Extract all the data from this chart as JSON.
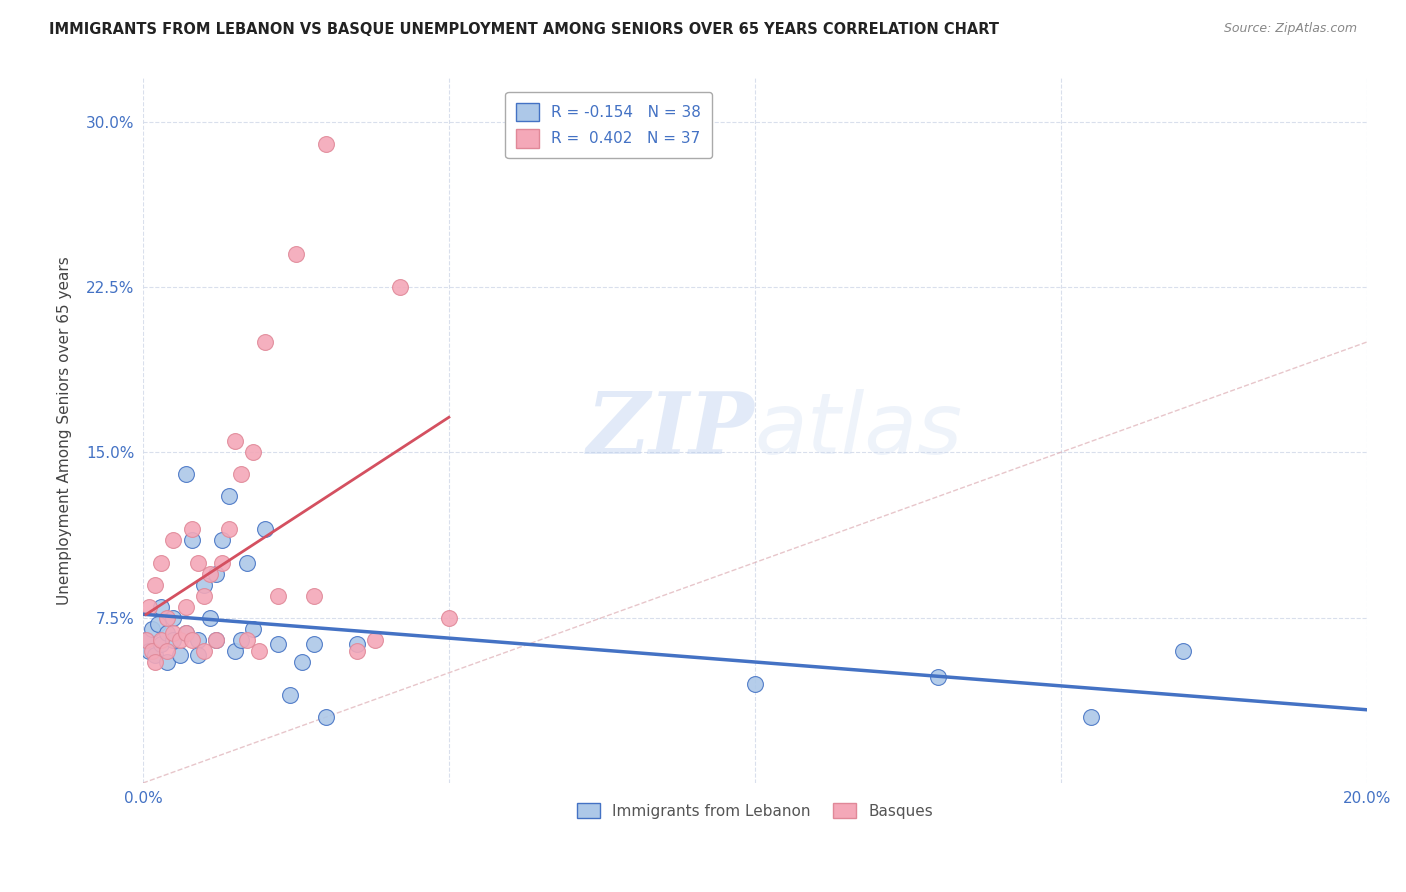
{
  "title": "IMMIGRANTS FROM LEBANON VS BASQUE UNEMPLOYMENT AMONG SENIORS OVER 65 YEARS CORRELATION CHART",
  "source": "Source: ZipAtlas.com",
  "ylabel": "Unemployment Among Seniors over 65 years",
  "legend_label_1": "Immigrants from Lebanon",
  "legend_label_2": "Basques",
  "r1": -0.154,
  "n1": 38,
  "r2": 0.402,
  "n2": 37,
  "color_blue": "#adc8e8",
  "color_pink": "#f4a8b8",
  "color_blue_line": "#4472c4",
  "color_pink_line": "#d45060",
  "color_diag": "#d8a0a8",
  "xlim": [
    0.0,
    0.2
  ],
  "ylim": [
    0.0,
    0.32
  ],
  "xticks": [
    0.0,
    0.05,
    0.1,
    0.15,
    0.2
  ],
  "yticks": [
    0.075,
    0.15,
    0.225,
    0.3
  ],
  "blue_x": [
    0.0005,
    0.001,
    0.0015,
    0.002,
    0.0025,
    0.003,
    0.003,
    0.004,
    0.004,
    0.005,
    0.005,
    0.006,
    0.007,
    0.007,
    0.008,
    0.009,
    0.009,
    0.01,
    0.011,
    0.012,
    0.012,
    0.013,
    0.014,
    0.015,
    0.016,
    0.017,
    0.018,
    0.02,
    0.022,
    0.024,
    0.026,
    0.028,
    0.03,
    0.035,
    0.1,
    0.13,
    0.155,
    0.17
  ],
  "blue_y": [
    0.065,
    0.06,
    0.07,
    0.058,
    0.072,
    0.063,
    0.08,
    0.055,
    0.068,
    0.075,
    0.065,
    0.058,
    0.14,
    0.068,
    0.11,
    0.065,
    0.058,
    0.09,
    0.075,
    0.095,
    0.065,
    0.11,
    0.13,
    0.06,
    0.065,
    0.1,
    0.07,
    0.115,
    0.063,
    0.04,
    0.055,
    0.063,
    0.03,
    0.063,
    0.045,
    0.048,
    0.03,
    0.06
  ],
  "pink_x": [
    0.0005,
    0.001,
    0.0015,
    0.002,
    0.002,
    0.003,
    0.003,
    0.004,
    0.004,
    0.005,
    0.005,
    0.006,
    0.007,
    0.007,
    0.008,
    0.008,
    0.009,
    0.01,
    0.01,
    0.011,
    0.012,
    0.013,
    0.014,
    0.015,
    0.016,
    0.017,
    0.018,
    0.019,
    0.02,
    0.022,
    0.025,
    0.028,
    0.03,
    0.035,
    0.038,
    0.042,
    0.05
  ],
  "pink_y": [
    0.065,
    0.08,
    0.06,
    0.055,
    0.09,
    0.065,
    0.1,
    0.075,
    0.06,
    0.068,
    0.11,
    0.065,
    0.068,
    0.08,
    0.065,
    0.115,
    0.1,
    0.06,
    0.085,
    0.095,
    0.065,
    0.1,
    0.115,
    0.155,
    0.14,
    0.065,
    0.15,
    0.06,
    0.2,
    0.085,
    0.24,
    0.085,
    0.29,
    0.06,
    0.065,
    0.225,
    0.075
  ],
  "background_color": "#ffffff"
}
